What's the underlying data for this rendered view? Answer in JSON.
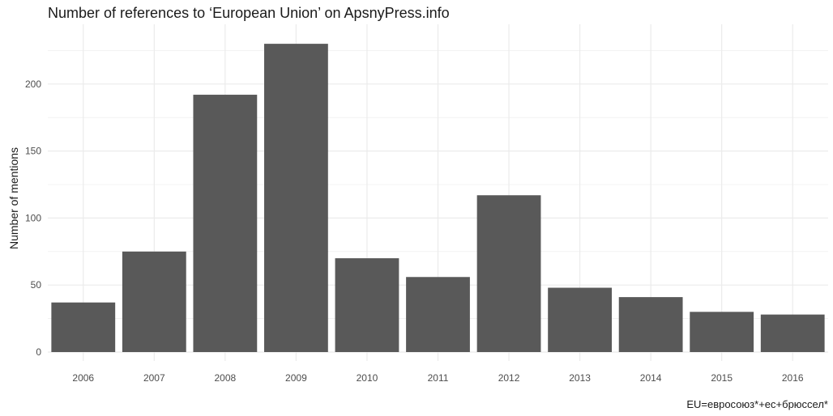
{
  "chart_data": {
    "type": "bar",
    "title": "Number of references to ‘European Union’ on ApsnyPress.info",
    "xlabel": "",
    "ylabel": "Number of mentions",
    "caption": "EU=евросоюз*+ес+брюссел*",
    "categories": [
      "2006",
      "2007",
      "2008",
      "2009",
      "2010",
      "2011",
      "2012",
      "2013",
      "2014",
      "2015",
      "2016"
    ],
    "values": [
      37,
      75,
      192,
      230,
      70,
      56,
      117,
      48,
      41,
      30,
      28
    ],
    "ylim": [
      0,
      230
    ],
    "yticks": [
      "0",
      "50",
      "100",
      "150",
      "200"
    ],
    "grid": true,
    "bar_color": "#595959",
    "grid_color": "#ebebeb"
  }
}
